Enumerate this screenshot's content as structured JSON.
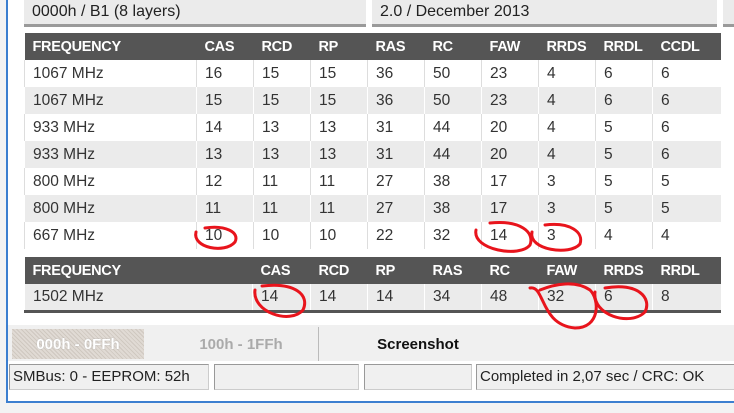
{
  "info": {
    "left": "0000h / B1 (8 layers)",
    "right": "2.0 / December 2013"
  },
  "table1": {
    "headers": [
      "FREQUENCY",
      "CAS",
      "RCD",
      "RP",
      "RAS",
      "RC",
      "FAW",
      "RRDS",
      "RRDL",
      "CCDL"
    ],
    "rows": [
      [
        "1067 MHz",
        "16",
        "15",
        "15",
        "36",
        "50",
        "23",
        "4",
        "6",
        "6"
      ],
      [
        "1067 MHz",
        "15",
        "15",
        "15",
        "36",
        "50",
        "23",
        "4",
        "6",
        "6"
      ],
      [
        "933 MHz",
        "14",
        "13",
        "13",
        "31",
        "44",
        "20",
        "4",
        "5",
        "6"
      ],
      [
        "933 MHz",
        "13",
        "13",
        "13",
        "31",
        "44",
        "20",
        "4",
        "5",
        "6"
      ],
      [
        "800 MHz",
        "12",
        "11",
        "11",
        "27",
        "38",
        "17",
        "3",
        "5",
        "5"
      ],
      [
        "800 MHz",
        "11",
        "11",
        "11",
        "27",
        "38",
        "17",
        "3",
        "5",
        "5"
      ],
      [
        "667 MHz",
        "10",
        "10",
        "10",
        "22",
        "32",
        "14",
        "3",
        "4",
        "4"
      ]
    ]
  },
  "table2": {
    "headers": [
      "FREQUENCY",
      "CAS",
      "RCD",
      "RP",
      "RAS",
      "RC",
      "FAW",
      "RRDS",
      "RRDL"
    ],
    "rows": [
      [
        "1502 MHz",
        "14",
        "14",
        "14",
        "34",
        "48",
        "32",
        "6",
        "8"
      ]
    ]
  },
  "buttons": {
    "range1": "000h - 0FFh",
    "range2": "100h - 1FFh",
    "screenshot": "Screenshot"
  },
  "status": {
    "bus": "SMBus: 0 - EEPROM: 52h",
    "s2": "",
    "s3": "",
    "result": "Completed in 2,07 sec / CRC: OK"
  },
  "colors": {
    "header_bg": "#555555",
    "annotation": "#e8141c",
    "window_border": "#3c7fd0"
  }
}
